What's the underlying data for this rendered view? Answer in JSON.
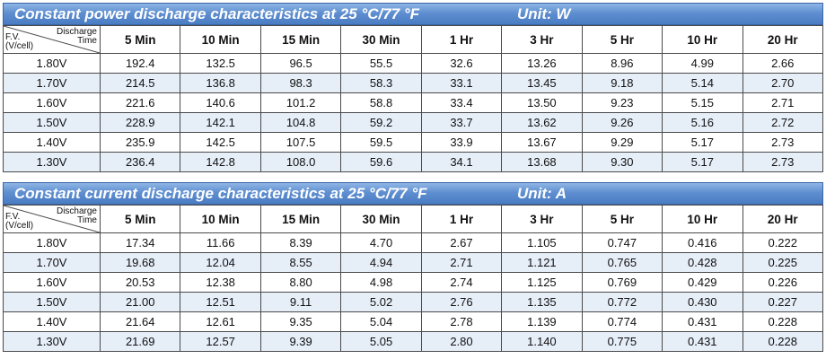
{
  "power": {
    "title": "Constant power discharge characteristics at 25 °C/77 °F",
    "unit": "Unit: W",
    "corner_top": [
      "Discharge",
      "Time"
    ],
    "corner_bottom": [
      "F.V.",
      "(V/cell)"
    ],
    "headers": [
      "5 Min",
      "10 Min",
      "15 Min",
      "30 Min",
      "1 Hr",
      "3 Hr",
      "5 Hr",
      "10 Hr",
      "20 Hr"
    ],
    "rows": [
      {
        "fv": "1.80V",
        "values": [
          "192.4",
          "132.5",
          "96.5",
          "55.5",
          "32.6",
          "13.26",
          "8.96",
          "4.99",
          "2.66"
        ]
      },
      {
        "fv": "1.70V",
        "values": [
          "214.5",
          "136.8",
          "98.3",
          "58.3",
          "33.1",
          "13.45",
          "9.18",
          "5.14",
          "2.70"
        ]
      },
      {
        "fv": "1.60V",
        "values": [
          "221.6",
          "140.6",
          "101.2",
          "58.8",
          "33.4",
          "13.50",
          "9.23",
          "5.15",
          "2.71"
        ]
      },
      {
        "fv": "1.50V",
        "values": [
          "228.9",
          "142.1",
          "104.8",
          "59.2",
          "33.7",
          "13.62",
          "9.26",
          "5.16",
          "2.72"
        ]
      },
      {
        "fv": "1.40V",
        "values": [
          "235.9",
          "142.5",
          "107.5",
          "59.5",
          "33.9",
          "13.67",
          "9.29",
          "5.17",
          "2.73"
        ]
      },
      {
        "fv": "1.30V",
        "values": [
          "236.4",
          "142.8",
          "108.0",
          "59.6",
          "34.1",
          "13.68",
          "9.30",
          "5.17",
          "2.73"
        ]
      }
    ]
  },
  "current": {
    "title": "Constant current discharge characteristics at 25 °C/77 °F",
    "unit": "Unit: A",
    "corner_top": [
      "Discharge",
      "Time"
    ],
    "corner_bottom": [
      "F.V.",
      "(V/cell)"
    ],
    "headers": [
      "5 Min",
      "10 Min",
      "15 Min",
      "30 Min",
      "1 Hr",
      "3 Hr",
      "5 Hr",
      "10 Hr",
      "20 Hr"
    ],
    "rows": [
      {
        "fv": "1.80V",
        "values": [
          "17.34",
          "11.66",
          "8.39",
          "4.70",
          "2.67",
          "1.105",
          "0.747",
          "0.416",
          "0.222"
        ]
      },
      {
        "fv": "1.70V",
        "values": [
          "19.68",
          "12.04",
          "8.55",
          "4.94",
          "2.71",
          "1.121",
          "0.765",
          "0.428",
          "0.225"
        ]
      },
      {
        "fv": "1.60V",
        "values": [
          "20.53",
          "12.38",
          "8.80",
          "4.98",
          "2.74",
          "1.125",
          "0.769",
          "0.429",
          "0.226"
        ]
      },
      {
        "fv": "1.50V",
        "values": [
          "21.00",
          "12.51",
          "9.11",
          "5.02",
          "2.76",
          "1.135",
          "0.772",
          "0.430",
          "0.227"
        ]
      },
      {
        "fv": "1.40V",
        "values": [
          "21.64",
          "12.61",
          "9.35",
          "5.04",
          "2.78",
          "1.139",
          "0.774",
          "0.431",
          "0.228"
        ]
      },
      {
        "fv": "1.30V",
        "values": [
          "21.69",
          "12.57",
          "9.39",
          "5.05",
          "2.80",
          "1.140",
          "0.775",
          "0.431",
          "0.228"
        ]
      }
    ]
  },
  "colors": {
    "banner": "#5f8fd0",
    "alt_row": "#e6eef8",
    "border": "#4a4a4a"
  }
}
